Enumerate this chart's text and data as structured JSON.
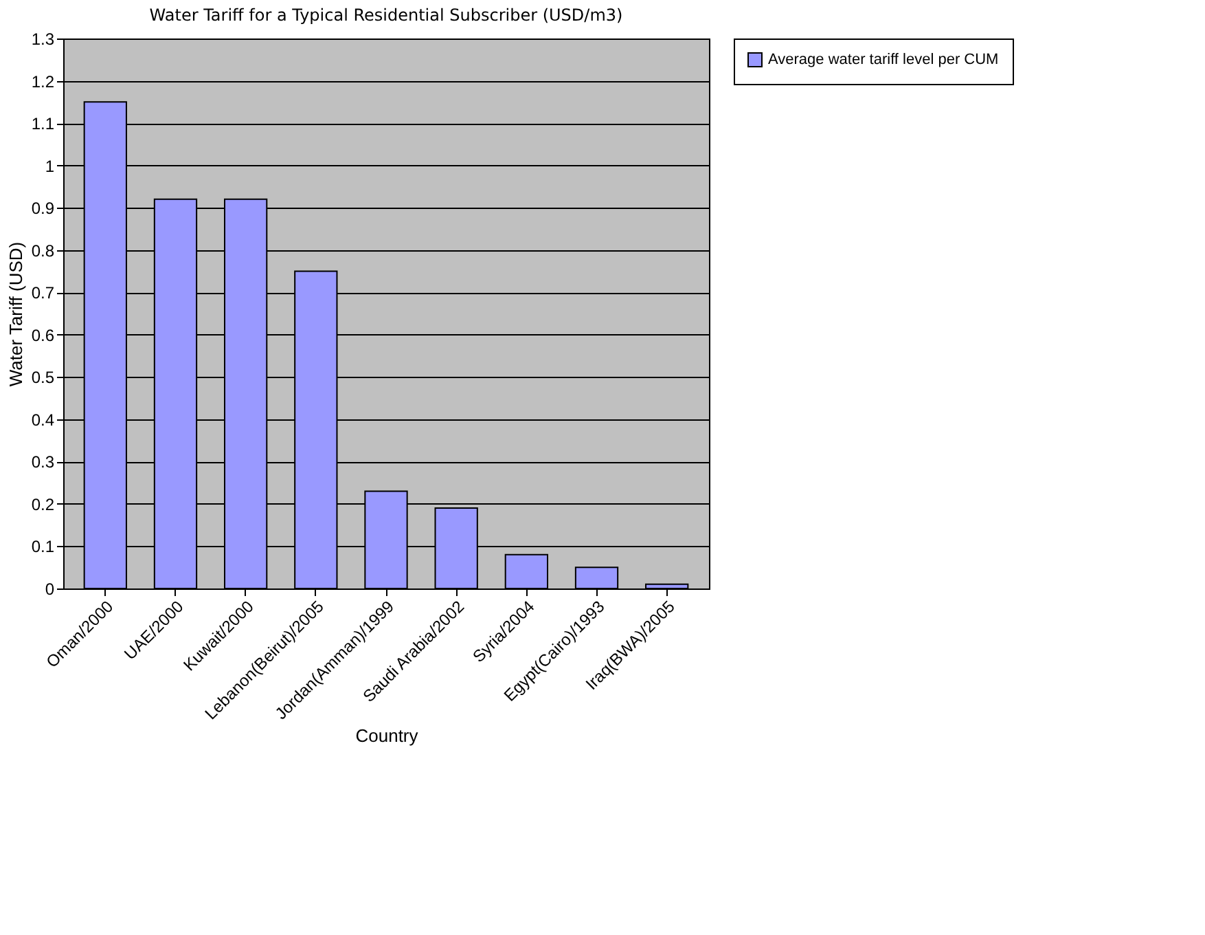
{
  "chart_data": {
    "type": "bar",
    "title": "Water Tariff for a Typical Residential Subscriber (USD/m3)",
    "xlabel": "Country",
    "ylabel": "Water Tariff (USD)",
    "categories": [
      "Oman/2000",
      "UAE/2000",
      "Kuwait/2000",
      "Lebanon(Beirut)/2005",
      "Jordan(Amman)/1999",
      "Saudi Arabia/2002",
      "Syria/2004",
      "Egypt(Cairo)/1993",
      "Iraq(BWA)/2005"
    ],
    "series": [
      {
        "name": "Average water tariff level per CUM",
        "color": "#9999ff",
        "values": [
          1.15,
          0.92,
          0.92,
          0.75,
          0.23,
          0.19,
          0.08,
          0.05,
          0.01
        ]
      }
    ],
    "ylim": [
      0,
      1.3
    ],
    "yticks": [
      0,
      0.1,
      0.2,
      0.3,
      0.4,
      0.5,
      0.6,
      0.7,
      0.8,
      0.9,
      1,
      1.1,
      1.2,
      1.3
    ],
    "grid": "y",
    "legend": "right"
  }
}
